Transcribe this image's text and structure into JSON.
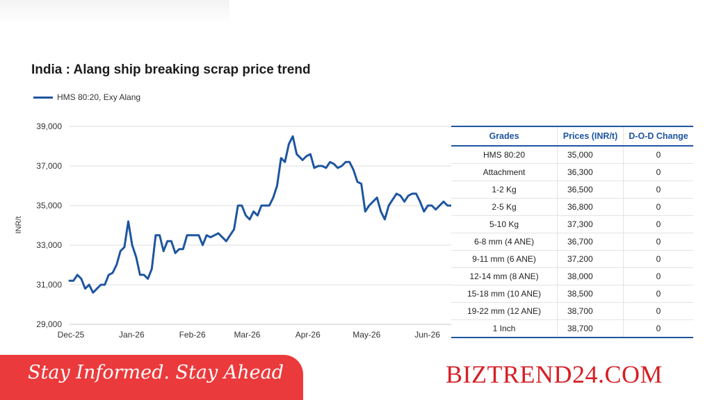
{
  "chart_data": {
    "type": "line",
    "title": "India : Alang ship breaking scrap price trend",
    "ylabel": "INR/t",
    "ylim": [
      29000,
      39000
    ],
    "yticks": [
      "29,000",
      "31,000",
      "33,000",
      "35,000",
      "37,000",
      "39,000"
    ],
    "ytick_values": [
      29000,
      31000,
      33000,
      35000,
      37000,
      39000
    ],
    "xticks": [
      "Dec-25",
      "Jan-26",
      "Feb-26",
      "Mar-26",
      "Apr-26",
      "May-26",
      "Jun-26"
    ],
    "xtick_positions": [
      0,
      31,
      62,
      90,
      121,
      151,
      182
    ],
    "xlim": [
      0,
      196
    ],
    "grid": true,
    "legend_position": "top-left",
    "series": [
      {
        "name": "HMS 80:20, Exy Alang",
        "color": "#1d55a0",
        "x": [
          0,
          2,
          4,
          6,
          8,
          10,
          12,
          14,
          16,
          18,
          20,
          22,
          24,
          26,
          28,
          30,
          32,
          34,
          36,
          38,
          40,
          42,
          44,
          46,
          48,
          50,
          52,
          54,
          56,
          58,
          60,
          62,
          64,
          66,
          68,
          70,
          72,
          74,
          76,
          78,
          80,
          82,
          84,
          86,
          88,
          90,
          92,
          94,
          96,
          98,
          100,
          102,
          104,
          106,
          108,
          110,
          112,
          114,
          116,
          118,
          119,
          121,
          123,
          125,
          127,
          129,
          131,
          133,
          135,
          137,
          139,
          141,
          143,
          145,
          147,
          149,
          151,
          153,
          155,
          157,
          159,
          161,
          163,
          165,
          167,
          169,
          171,
          173,
          175,
          177,
          179,
          181,
          183,
          185,
          187,
          189,
          191,
          193,
          195
        ],
        "values": [
          31200,
          31200,
          31500,
          31300,
          30800,
          31000,
          30600,
          30800,
          31000,
          31000,
          31500,
          31600,
          32000,
          32700,
          32900,
          34200,
          33000,
          32400,
          31500,
          31500,
          31300,
          31800,
          33500,
          33500,
          32700,
          33200,
          33200,
          32600,
          32800,
          32800,
          33500,
          33500,
          33500,
          33500,
          33000,
          33500,
          33400,
          33500,
          33600,
          33400,
          33200,
          33500,
          33800,
          35000,
          35000,
          34500,
          34300,
          34700,
          34500,
          35000,
          35000,
          35000,
          35400,
          36000,
          37400,
          37200,
          38100,
          38500,
          37600,
          37400,
          37300,
          37500,
          37600,
          36900,
          37000,
          37000,
          36900,
          37200,
          37100,
          36900,
          37000,
          37200,
          37200,
          36800,
          36200,
          36100,
          34700,
          35000,
          35200,
          35400,
          34700,
          34300,
          35000,
          35300,
          35600,
          35500,
          35200,
          35500,
          35600,
          35600,
          35200,
          34700,
          35000,
          35000,
          34800,
          35000,
          35200,
          35000,
          35000
        ]
      }
    ]
  },
  "table": {
    "headers": [
      "Grades",
      "Prices (INR/t)",
      "D-O-D Change"
    ],
    "rows": [
      [
        "HMS 80:20",
        "35,000",
        "0"
      ],
      [
        "Attachment",
        "36,300",
        "0"
      ],
      [
        "1-2 Kg",
        "36,500",
        "0"
      ],
      [
        "2-5 Kg",
        "36,800",
        "0"
      ],
      [
        "5-10 Kg",
        "37,300",
        "0"
      ],
      [
        "6-8 mm (4 ANE)",
        "36,700",
        "0"
      ],
      [
        "9-11 mm (6 ANE)",
        "37,200",
        "0"
      ],
      [
        "12-14 mm (8 ANE)",
        "38,000",
        "0"
      ],
      [
        "15-18 mm (10 ANE)",
        "38,500",
        "0"
      ],
      [
        "19-22 mm (12 ANE)",
        "38,700",
        "0"
      ],
      [
        "1 Inch",
        "38,700",
        "0"
      ]
    ]
  },
  "banner": {
    "tagline": "Stay Informed. Stay Ahead",
    "site": "BIZTREND24.COM",
    "colors": {
      "banner_bg": "#eb3a3c",
      "site_text": "#d61f25"
    }
  }
}
